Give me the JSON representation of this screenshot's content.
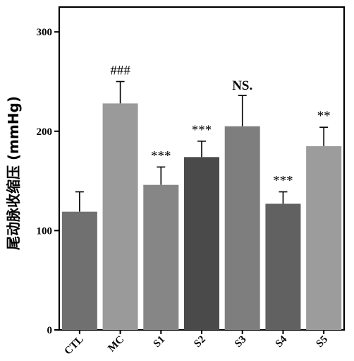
{
  "chart_data": {
    "type": "bar",
    "title": "",
    "xlabel": "",
    "ylabel": "尾动脉收缩压 (mmHg)",
    "ylim": [
      0,
      325
    ],
    "yticks": [
      0,
      100,
      200,
      300
    ],
    "categories": [
      "CTL",
      "MC",
      "S1",
      "S2",
      "S3",
      "S4",
      "S5"
    ],
    "values": [
      119,
      228,
      146,
      174,
      205,
      127,
      185
    ],
    "errors": [
      20,
      22,
      18,
      16,
      31,
      12,
      19
    ],
    "annotations": [
      "",
      "###",
      "***",
      "***",
      "NS.",
      "***",
      "**"
    ],
    "bar_colors": [
      "#707070",
      "#9a9a9a",
      "#868686",
      "#4a4a4a",
      "#7e7e7e",
      "#616161",
      "#9c9c9c"
    ],
    "grid": false,
    "legend": "none"
  }
}
